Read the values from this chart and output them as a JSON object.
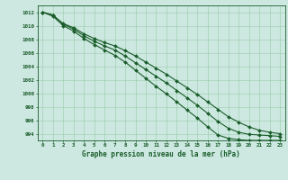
{
  "x": [
    0,
    1,
    2,
    3,
    4,
    5,
    6,
    7,
    8,
    9,
    10,
    11,
    12,
    13,
    14,
    15,
    16,
    17,
    18,
    19,
    20,
    21,
    22,
    23
  ],
  "line_top": [
    1012.0,
    1011.5,
    1010.3,
    1009.7,
    1008.8,
    1008.1,
    1007.5,
    1007.0,
    1006.3,
    1005.5,
    1004.6,
    1003.7,
    1002.8,
    1001.8,
    1000.8,
    999.8,
    998.7,
    997.6,
    996.5,
    995.7,
    995.0,
    994.5,
    994.2,
    994.0
  ],
  "line_mid": [
    1012.0,
    1011.6,
    1010.2,
    1009.5,
    1008.5,
    1007.7,
    1007.0,
    1006.4,
    1005.5,
    1004.5,
    1003.5,
    1002.5,
    1001.5,
    1000.4,
    999.3,
    998.2,
    997.0,
    995.8,
    994.8,
    994.2,
    993.9,
    993.8,
    993.7,
    993.6
  ],
  "line_bot": [
    1012.0,
    1011.4,
    1010.0,
    1009.2,
    1008.1,
    1007.2,
    1006.4,
    1005.6,
    1004.6,
    1003.4,
    1002.2,
    1001.0,
    999.9,
    998.7,
    997.5,
    996.3,
    995.0,
    993.8,
    993.3,
    993.1,
    993.0,
    993.0,
    993.0,
    993.0
  ],
  "bg_color": "#cce8e0",
  "grid_color": "#99ccaa",
  "line_color": "#1a5c2a",
  "xlabel": "Graphe pression niveau de la mer (hPa)",
  "ylim_min": 993.0,
  "ylim_max": 1013.0,
  "yticks": [
    994,
    996,
    998,
    1000,
    1002,
    1004,
    1006,
    1008,
    1010,
    1012
  ],
  "xticks": [
    0,
    1,
    2,
    3,
    4,
    5,
    6,
    7,
    8,
    9,
    10,
    11,
    12,
    13,
    14,
    15,
    16,
    17,
    18,
    19,
    20,
    21,
    22,
    23
  ]
}
